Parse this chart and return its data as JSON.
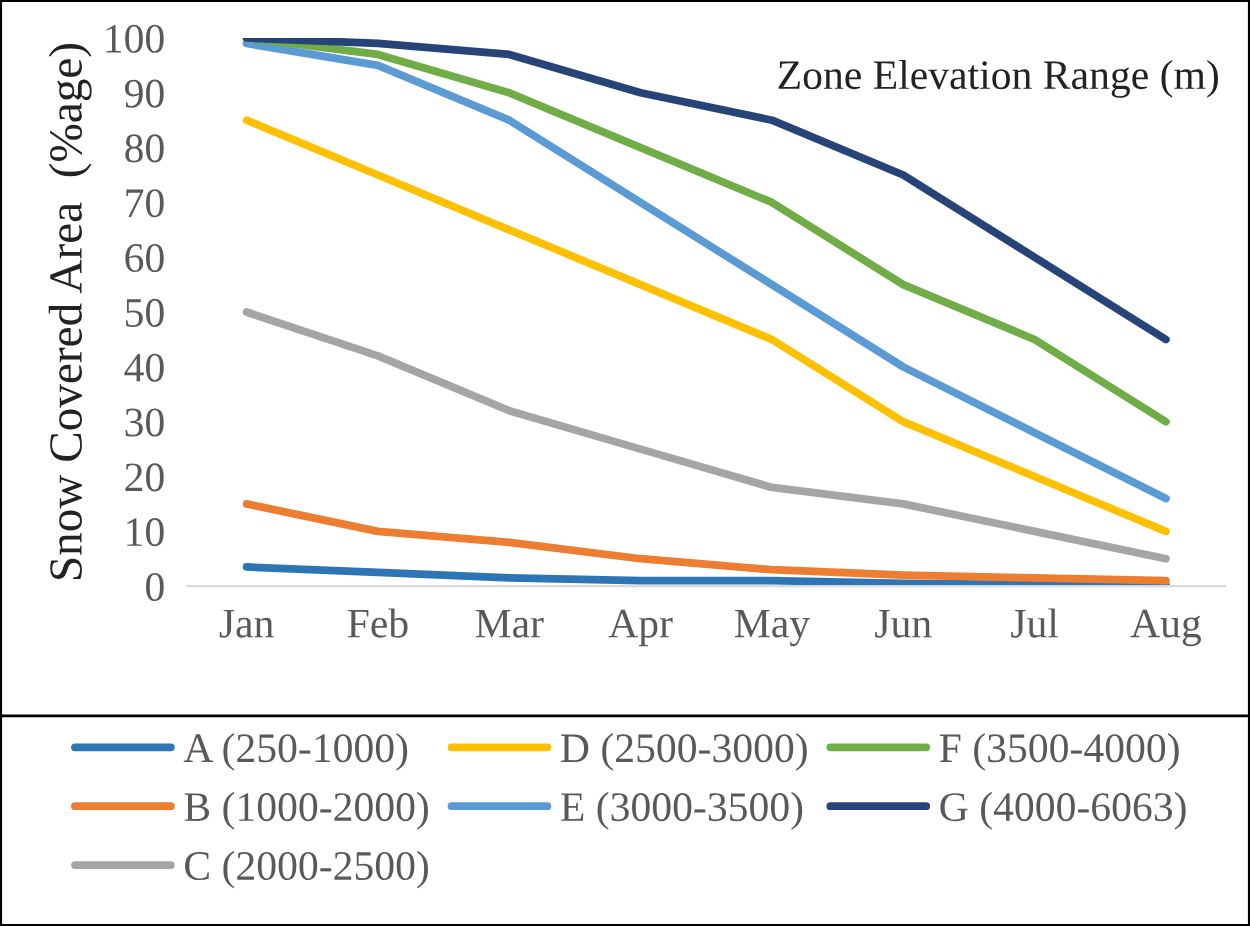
{
  "chart_data": {
    "type": "line",
    "ylabel": "Snow Covered Area  (%age)",
    "legend_title": "Zone Elevation Range (m)",
    "categories": [
      "Jan",
      "Feb",
      "Mar",
      "Apr",
      "May",
      "Jun",
      "Jul",
      "Aug"
    ],
    "ylim": [
      0,
      100
    ],
    "yticks": [
      0,
      10,
      20,
      30,
      40,
      50,
      60,
      70,
      80,
      90,
      100
    ],
    "grid": false,
    "legend": "bottom",
    "marker": "none",
    "line_style": "solid",
    "series": [
      {
        "name": "A (250-1000)",
        "color": "#2e75b6",
        "values": [
          3.5,
          2.5,
          1.5,
          1,
          1,
          0.5,
          0.3,
          0.2
        ]
      },
      {
        "name": "B (1000-2000)",
        "color": "#ed7d31",
        "values": [
          15,
          10,
          8,
          5,
          3,
          2,
          1.5,
          1
        ]
      },
      {
        "name": "C (2000-2500)",
        "color": "#a5a5a5",
        "values": [
          50,
          42,
          32,
          25,
          18,
          15,
          10,
          5
        ]
      },
      {
        "name": "D (2500-3000)",
        "color": "#ffc000",
        "values": [
          85,
          75,
          65,
          55,
          45,
          30,
          20,
          10
        ]
      },
      {
        "name": "E (3000-3500)",
        "color": "#5b9bd5",
        "values": [
          99,
          95,
          85,
          70,
          55,
          40,
          28,
          16
        ]
      },
      {
        "name": "F (3500-4000)",
        "color": "#70ad47",
        "values": [
          100,
          97,
          90,
          80,
          70,
          55,
          45,
          30
        ]
      },
      {
        "name": "G (4000-6063)",
        "color": "#264478",
        "values": [
          100,
          99,
          97,
          90,
          85,
          75,
          60,
          45
        ]
      }
    ]
  }
}
